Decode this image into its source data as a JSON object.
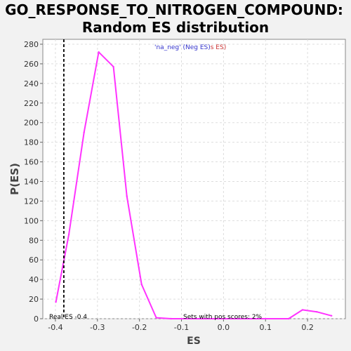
{
  "chart_data": {
    "type": "line",
    "title": [
      "GO_RESPONSE_TO_NITROGEN_COMPOUND:",
      "Random ES distribution"
    ],
    "xlabel": "ES",
    "ylabel": "P(ES)",
    "xlim": [
      -0.43,
      0.29
    ],
    "ylim": [
      0,
      285
    ],
    "xticks": [
      -0.4,
      -0.3,
      -0.2,
      -0.1,
      0.0,
      0.1,
      0.2
    ],
    "xtick_labels": [
      "-0.4",
      "-0.3",
      "-0.2",
      "-0.1",
      "0.0",
      "0.1",
      "0.2"
    ],
    "yticks": [
      0,
      20,
      40,
      60,
      80,
      100,
      120,
      140,
      160,
      180,
      200,
      220,
      240,
      260,
      280
    ],
    "ytick_labels": [
      "0",
      "20",
      "40",
      "60",
      "80",
      "100",
      "120",
      "140",
      "160",
      "180",
      "200",
      "220",
      "240",
      "260",
      "280"
    ],
    "grid": true,
    "series": [
      {
        "color": "#ff33ff",
        "x": [
          -0.399,
          -0.368,
          -0.332,
          -0.297,
          -0.262,
          -0.23,
          -0.195,
          -0.16,
          -0.125,
          0.155,
          0.188,
          0.222,
          0.257
        ],
        "y": [
          17,
          86,
          190,
          272,
          257,
          125,
          35,
          1,
          0,
          0,
          9,
          7,
          3
        ]
      }
    ],
    "reference_line": {
      "x": -0.38,
      "style": "dashed",
      "color": "#000000"
    },
    "annotations": {
      "legend_part1": "'na_neg' (Neg ES)",
      "legend_part1_color": "#3333cc",
      "legend_part2": "s ES)",
      "legend_part2_color": "#cc3333",
      "real_es": "Real ES -0.4",
      "pos_scores": "Sets with pos scores: 2%"
    }
  }
}
